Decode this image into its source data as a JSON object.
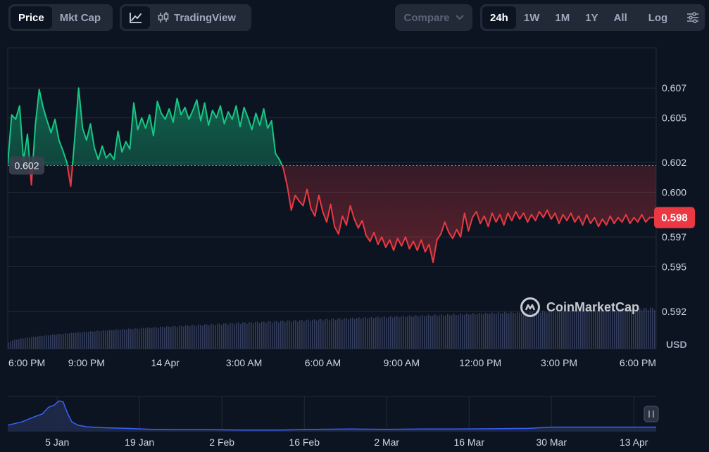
{
  "toolbar": {
    "metric_tabs": [
      {
        "label": "Price",
        "active": true
      },
      {
        "label": "Mkt Cap",
        "active": false
      }
    ],
    "line_chart_icon": "line-chart-icon",
    "tradingview_label": "TradingView",
    "compare_label": "Compare",
    "ranges": [
      {
        "label": "24h",
        "active": true
      },
      {
        "label": "1W",
        "active": false
      },
      {
        "label": "1M",
        "active": false
      },
      {
        "label": "1Y",
        "active": false
      },
      {
        "label": "All",
        "active": false
      }
    ],
    "log_label": "Log",
    "settings_icon": "sliders-icon"
  },
  "watermark": "CoinMarketCap",
  "colors": {
    "up": "#16c784",
    "down": "#ea3943",
    "background": "#0d1421",
    "grid": "#222a38",
    "volume": "#3b4466",
    "navigator_line": "#3861fb"
  },
  "chart_data": {
    "type": "area",
    "title": "",
    "xlabel": "",
    "ylabel": "USD",
    "ylim": [
      0.5895,
      0.6097
    ],
    "y_ticks": [
      "0.607",
      "0.605",
      "0.602",
      "0.600",
      "0.597",
      "0.595",
      "0.592"
    ],
    "y_tick_values": [
      0.607,
      0.605,
      0.602,
      0.6,
      0.597,
      0.595,
      0.592
    ],
    "x_ticks": [
      "6:00 PM",
      "9:00 PM",
      "14 Apr",
      "3:00 AM",
      "6:00 AM",
      "9:00 AM",
      "12:00 PM",
      "3:00 PM",
      "6:00 PM"
    ],
    "x_tick_hours": [
      0,
      3,
      6,
      9,
      12,
      15,
      18,
      21,
      24
    ],
    "x_range_hours": [
      0,
      24.7
    ],
    "baseline": {
      "value": 0.6018,
      "label": "0.602"
    },
    "current": {
      "value": 0.5983,
      "label": "0.598"
    },
    "series": [
      {
        "price": [
          [
            0.0,
            0.6019
          ],
          [
            0.15,
            0.6052
          ],
          [
            0.3,
            0.6049
          ],
          [
            0.45,
            0.6058
          ],
          [
            0.6,
            0.6021
          ],
          [
            0.75,
            0.6039
          ],
          [
            0.9,
            0.6005
          ],
          [
            1.05,
            0.6045
          ],
          [
            1.2,
            0.6069
          ],
          [
            1.35,
            0.6057
          ],
          [
            1.5,
            0.6048
          ],
          [
            1.65,
            0.604
          ],
          [
            1.8,
            0.6049
          ],
          [
            1.95,
            0.6035
          ],
          [
            2.1,
            0.6028
          ],
          [
            2.25,
            0.602
          ],
          [
            2.4,
            0.6004
          ],
          [
            2.55,
            0.6036
          ],
          [
            2.7,
            0.607
          ],
          [
            2.85,
            0.6043
          ],
          [
            3.0,
            0.6035
          ],
          [
            3.15,
            0.6046
          ],
          [
            3.3,
            0.603
          ],
          [
            3.45,
            0.6022
          ],
          [
            3.6,
            0.6031
          ],
          [
            3.75,
            0.6023
          ],
          [
            3.9,
            0.6026
          ],
          [
            4.05,
            0.6022
          ],
          [
            4.2,
            0.6041
          ],
          [
            4.35,
            0.6027
          ],
          [
            4.5,
            0.6034
          ],
          [
            4.65,
            0.6029
          ],
          [
            4.8,
            0.606
          ],
          [
            4.95,
            0.6042
          ],
          [
            5.1,
            0.605
          ],
          [
            5.25,
            0.6043
          ],
          [
            5.4,
            0.6052
          ],
          [
            5.55,
            0.6038
          ],
          [
            5.7,
            0.6061
          ],
          [
            5.85,
            0.6053
          ],
          [
            6.0,
            0.6049
          ],
          [
            6.15,
            0.6056
          ],
          [
            6.3,
            0.6047
          ],
          [
            6.45,
            0.6063
          ],
          [
            6.6,
            0.6052
          ],
          [
            6.75,
            0.6057
          ],
          [
            6.9,
            0.6049
          ],
          [
            7.05,
            0.6055
          ],
          [
            7.2,
            0.6062
          ],
          [
            7.35,
            0.6048
          ],
          [
            7.5,
            0.606
          ],
          [
            7.65,
            0.6045
          ],
          [
            7.8,
            0.6055
          ],
          [
            7.95,
            0.605
          ],
          [
            8.1,
            0.6058
          ],
          [
            8.25,
            0.6046
          ],
          [
            8.4,
            0.6054
          ],
          [
            8.55,
            0.6049
          ],
          [
            8.7,
            0.6058
          ],
          [
            8.85,
            0.6044
          ],
          [
            9.0,
            0.6057
          ],
          [
            9.15,
            0.605
          ],
          [
            9.3,
            0.6042
          ],
          [
            9.45,
            0.6053
          ],
          [
            9.6,
            0.6045
          ],
          [
            9.75,
            0.6056
          ],
          [
            9.9,
            0.6043
          ],
          [
            10.05,
            0.6048
          ],
          [
            10.2,
            0.6026
          ],
          [
            10.35,
            0.6022
          ],
          [
            10.5,
            0.6016
          ],
          [
            10.65,
            0.6004
          ],
          [
            10.8,
            0.5988
          ],
          [
            10.95,
            0.5998
          ],
          [
            11.1,
            0.5994
          ],
          [
            11.25,
            0.5991
          ],
          [
            11.4,
            0.6002
          ],
          [
            11.55,
            0.5989
          ],
          [
            11.7,
            0.5984
          ],
          [
            11.85,
            0.5998
          ],
          [
            12.0,
            0.5987
          ],
          [
            12.15,
            0.598
          ],
          [
            12.3,
            0.5992
          ],
          [
            12.45,
            0.5977
          ],
          [
            12.6,
            0.5972
          ],
          [
            12.75,
            0.5984
          ],
          [
            12.9,
            0.5978
          ],
          [
            13.05,
            0.5991
          ],
          [
            13.2,
            0.5982
          ],
          [
            13.35,
            0.5976
          ],
          [
            13.5,
            0.5981
          ],
          [
            13.65,
            0.5971
          ],
          [
            13.8,
            0.5967
          ],
          [
            13.95,
            0.5973
          ],
          [
            14.1,
            0.5965
          ],
          [
            14.25,
            0.597
          ],
          [
            14.4,
            0.5963
          ],
          [
            14.55,
            0.5968
          ],
          [
            14.7,
            0.5961
          ],
          [
            14.85,
            0.5969
          ],
          [
            15.0,
            0.5964
          ],
          [
            15.15,
            0.597
          ],
          [
            15.3,
            0.5962
          ],
          [
            15.45,
            0.5967
          ],
          [
            15.6,
            0.5961
          ],
          [
            15.75,
            0.5968
          ],
          [
            15.9,
            0.596
          ],
          [
            16.05,
            0.5965
          ],
          [
            16.2,
            0.5953
          ],
          [
            16.35,
            0.5968
          ],
          [
            16.5,
            0.5972
          ],
          [
            16.65,
            0.598
          ],
          [
            16.8,
            0.5973
          ],
          [
            16.95,
            0.5969
          ],
          [
            17.1,
            0.5975
          ],
          [
            17.25,
            0.597
          ],
          [
            17.4,
            0.5986
          ],
          [
            17.55,
            0.5974
          ],
          [
            17.7,
            0.5983
          ],
          [
            17.85,
            0.5987
          ],
          [
            18.0,
            0.5979
          ],
          [
            18.15,
            0.5984
          ],
          [
            18.3,
            0.5977
          ],
          [
            18.45,
            0.5986
          ],
          [
            18.6,
            0.598
          ],
          [
            18.75,
            0.5985
          ],
          [
            18.9,
            0.5978
          ],
          [
            19.05,
            0.5986
          ],
          [
            19.2,
            0.5981
          ],
          [
            19.35,
            0.5987
          ],
          [
            19.5,
            0.5982
          ],
          [
            19.65,
            0.5986
          ],
          [
            19.8,
            0.598
          ],
          [
            19.95,
            0.5985
          ],
          [
            20.1,
            0.5981
          ],
          [
            20.25,
            0.5987
          ],
          [
            20.4,
            0.5983
          ],
          [
            20.55,
            0.5988
          ],
          [
            20.7,
            0.5982
          ],
          [
            20.85,
            0.5986
          ],
          [
            21.0,
            0.5979
          ],
          [
            21.15,
            0.5985
          ],
          [
            21.3,
            0.5981
          ],
          [
            21.45,
            0.5986
          ],
          [
            21.6,
            0.598
          ],
          [
            21.75,
            0.5984
          ],
          [
            21.9,
            0.5978
          ],
          [
            22.05,
            0.5985
          ],
          [
            22.2,
            0.5979
          ],
          [
            22.35,
            0.5983
          ],
          [
            22.5,
            0.5977
          ],
          [
            22.65,
            0.5982
          ],
          [
            22.8,
            0.5978
          ],
          [
            22.95,
            0.5984
          ],
          [
            23.1,
            0.5979
          ],
          [
            23.25,
            0.5983
          ],
          [
            23.4,
            0.598
          ],
          [
            23.55,
            0.5985
          ],
          [
            23.7,
            0.5979
          ],
          [
            23.85,
            0.5983
          ],
          [
            24.0,
            0.598
          ],
          [
            24.15,
            0.5985
          ],
          [
            24.3,
            0.598
          ],
          [
            24.45,
            0.5983
          ],
          [
            24.7,
            0.5983
          ]
        ]
      }
    ],
    "volume": {
      "start": 0.15,
      "end": 1.0
    },
    "navigator": {
      "x_ticks": [
        "5 Jan",
        "19 Jan",
        "2 Feb",
        "16 Feb",
        "2 Mar",
        "16 Mar",
        "30 Mar",
        "13 Apr"
      ],
      "x_tick_days": [
        0,
        14,
        28,
        42,
        56,
        70,
        84,
        98
      ],
      "x_range_days": [
        -8.4,
        101.8
      ],
      "ylim": [
        0.0,
        1.0
      ],
      "series": [
        [
          -8.4,
          0.2
        ],
        [
          -6.0,
          0.3
        ],
        [
          -4.0,
          0.45
        ],
        [
          -2.5,
          0.55
        ],
        [
          -1.5,
          0.75
        ],
        [
          -0.5,
          0.82
        ],
        [
          0.3,
          0.95
        ],
        [
          1.0,
          0.92
        ],
        [
          1.8,
          0.55
        ],
        [
          2.5,
          0.3
        ],
        [
          3.5,
          0.2
        ],
        [
          5.0,
          0.15
        ],
        [
          8.0,
          0.12
        ],
        [
          12.0,
          0.1
        ],
        [
          16.0,
          0.07
        ],
        [
          20.0,
          0.06
        ],
        [
          26.0,
          0.06
        ],
        [
          32.0,
          0.05
        ],
        [
          38.0,
          0.05
        ],
        [
          44.0,
          0.07
        ],
        [
          50.0,
          0.08
        ],
        [
          56.0,
          0.07
        ],
        [
          62.0,
          0.08
        ],
        [
          68.0,
          0.08
        ],
        [
          74.0,
          0.09
        ],
        [
          80.0,
          0.1
        ],
        [
          84.0,
          0.14
        ],
        [
          90.0,
          0.14
        ],
        [
          96.0,
          0.14
        ],
        [
          101.8,
          0.14
        ]
      ]
    }
  }
}
